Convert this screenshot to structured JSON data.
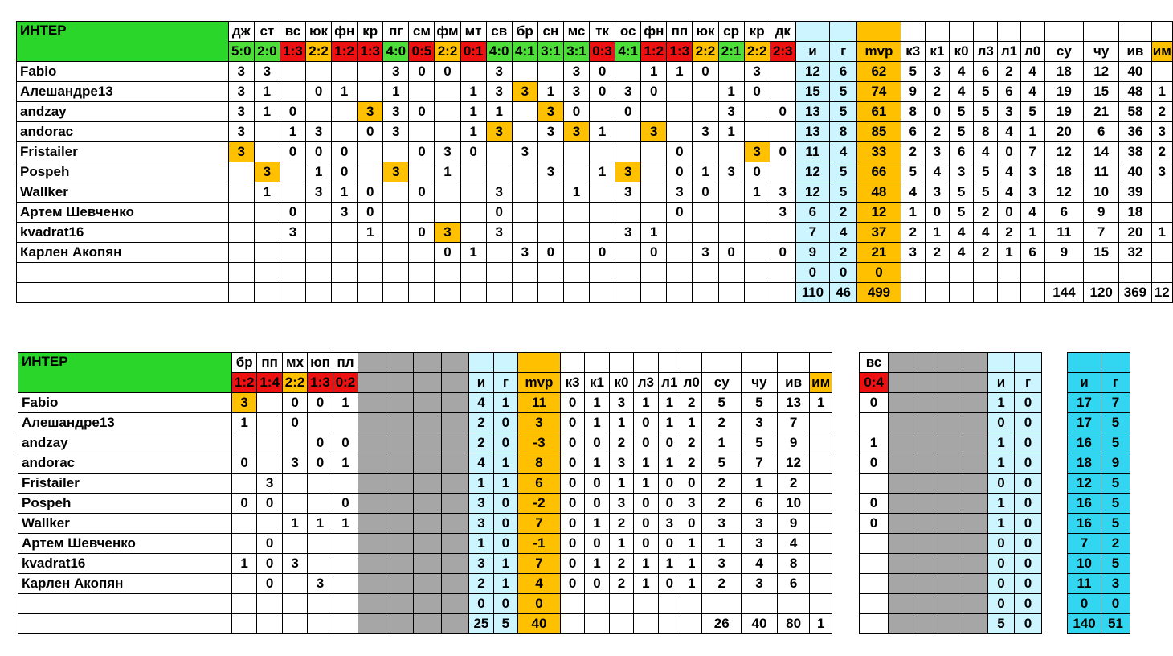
{
  "table1": {
    "title": "ИНТЕР",
    "match_headers": [
      "дж",
      "ст",
      "вс",
      "юк",
      "фн",
      "кр",
      "пг",
      "см",
      "фм",
      "мт",
      "св",
      "бр",
      "сн",
      "мс",
      "тк",
      "ос",
      "фн",
      "пп",
      "юк",
      "ср",
      "кр",
      "дк"
    ],
    "scores": [
      {
        "t": "5:0",
        "c": "g"
      },
      {
        "t": "2:0",
        "c": "g"
      },
      {
        "t": "1:3",
        "c": "r"
      },
      {
        "t": "2:2",
        "c": "y"
      },
      {
        "t": "1:2",
        "c": "r"
      },
      {
        "t": "1:3",
        "c": "r"
      },
      {
        "t": "4:0",
        "c": "g"
      },
      {
        "t": "0:5",
        "c": "r"
      },
      {
        "t": "2:2",
        "c": "y"
      },
      {
        "t": "0:1",
        "c": "r"
      },
      {
        "t": "4:0",
        "c": "g"
      },
      {
        "t": "4:1",
        "c": "g"
      },
      {
        "t": "3:1",
        "c": "g"
      },
      {
        "t": "3:1",
        "c": "g"
      },
      {
        "t": "0:3",
        "c": "r"
      },
      {
        "t": "4:1",
        "c": "g"
      },
      {
        "t": "1:2",
        "c": "r"
      },
      {
        "t": "1:3",
        "c": "r"
      },
      {
        "t": "2:2",
        "c": "y"
      },
      {
        "t": "2:1",
        "c": "g"
      },
      {
        "t": "2:2",
        "c": "y"
      },
      {
        "t": "2:3",
        "c": "r"
      }
    ],
    "stat_headers": [
      "и",
      "г",
      "mvp",
      "к3",
      "к1",
      "к0",
      "л3",
      "л1",
      "л0",
      "су",
      "чу",
      "ив",
      "им"
    ],
    "rows": [
      {
        "name": "Fabio",
        "m": [
          "3",
          "3",
          "",
          "",
          "",
          "",
          "3",
          "0",
          "0",
          "",
          "3",
          "",
          "",
          "3",
          "0",
          "",
          "1",
          "1",
          "0",
          "",
          "3",
          ""
        ],
        "hl": [],
        "s": [
          "12",
          "6",
          "62",
          "5",
          "3",
          "4",
          "6",
          "2",
          "4",
          "18",
          "12",
          "40",
          ""
        ]
      },
      {
        "name": "Алешандре13",
        "m": [
          "3",
          "1",
          "",
          "0",
          "1",
          "",
          "1",
          "",
          "",
          "1",
          "3",
          "3",
          "1",
          "3",
          "0",
          "3",
          "0",
          "",
          "",
          "1",
          "0",
          ""
        ],
        "hl": [
          11
        ],
        "s": [
          "15",
          "5",
          "74",
          "9",
          "2",
          "4",
          "5",
          "6",
          "4",
          "19",
          "15",
          "48",
          "1"
        ]
      },
      {
        "name": "andzay",
        "m": [
          "3",
          "1",
          "0",
          "",
          "",
          "3",
          "3",
          "0",
          "",
          "1",
          "1",
          "",
          "3",
          "0",
          "",
          "0",
          "",
          "",
          "",
          "3",
          "",
          "0"
        ],
        "hl": [
          5,
          12
        ],
        "s": [
          "13",
          "5",
          "61",
          "8",
          "0",
          "5",
          "5",
          "3",
          "5",
          "19",
          "21",
          "58",
          "2"
        ]
      },
      {
        "name": "andorac",
        "m": [
          "3",
          "",
          "1",
          "3",
          "",
          "0",
          "3",
          "",
          "",
          "1",
          "3",
          "",
          "3",
          "3",
          "1",
          "",
          "3",
          "",
          "3",
          "1",
          "",
          ""
        ],
        "hl": [
          10,
          13,
          16
        ],
        "s": [
          "13",
          "8",
          "85",
          "6",
          "2",
          "5",
          "8",
          "4",
          "1",
          "20",
          "6",
          "36",
          "3"
        ]
      },
      {
        "name": "Fristailer",
        "m": [
          "3",
          "",
          "0",
          "0",
          "0",
          "",
          "",
          "0",
          "3",
          "0",
          "",
          "3",
          "",
          "",
          "",
          "",
          "",
          "0",
          "",
          "",
          "3",
          "0"
        ],
        "hl": [
          0,
          20
        ],
        "s": [
          "11",
          "4",
          "33",
          "2",
          "3",
          "6",
          "4",
          "0",
          "7",
          "12",
          "14",
          "38",
          "2"
        ]
      },
      {
        "name": "Pospeh",
        "m": [
          "",
          "3",
          "",
          "1",
          "0",
          "",
          "3",
          "",
          "1",
          "",
          "",
          "",
          "3",
          "",
          "1",
          "3",
          "",
          "0",
          "1",
          "3",
          "0",
          ""
        ],
        "hl": [
          1,
          6,
          15
        ],
        "s": [
          "12",
          "5",
          "66",
          "5",
          "4",
          "3",
          "5",
          "4",
          "3",
          "18",
          "11",
          "40",
          "3"
        ]
      },
      {
        "name": "Wallker",
        "m": [
          "",
          "1",
          "",
          "3",
          "1",
          "0",
          "",
          "0",
          "",
          "",
          "3",
          "",
          "",
          "1",
          "",
          "3",
          "",
          "3",
          "0",
          "",
          "1",
          "3"
        ],
        "hl": [],
        "s": [
          "12",
          "5",
          "48",
          "4",
          "3",
          "5",
          "5",
          "4",
          "3",
          "12",
          "10",
          "39",
          ""
        ]
      },
      {
        "name": "Артем Шевченко",
        "m": [
          "",
          "",
          "0",
          "",
          "3",
          "0",
          "",
          "",
          "",
          "",
          "0",
          "",
          "",
          "",
          "",
          "",
          "",
          "0",
          "",
          "",
          "",
          "3"
        ],
        "hl": [],
        "s": [
          "6",
          "2",
          "12",
          "1",
          "0",
          "5",
          "2",
          "0",
          "4",
          "6",
          "9",
          "18",
          ""
        ]
      },
      {
        "name": "kvadrat16",
        "m": [
          "",
          "",
          "3",
          "",
          "",
          "1",
          "",
          "0",
          "3",
          "",
          "3",
          "",
          "",
          "",
          "",
          "3",
          "1",
          "",
          "",
          "",
          "",
          ""
        ],
        "hl": [
          8
        ],
        "s": [
          "7",
          "4",
          "37",
          "2",
          "1",
          "4",
          "4",
          "2",
          "1",
          "11",
          "7",
          "20",
          "1"
        ]
      },
      {
        "name": "Карлен Акопян",
        "m": [
          "",
          "",
          "",
          "",
          "",
          "",
          "",
          "",
          "0",
          "1",
          "",
          "3",
          "0",
          "",
          "0",
          "",
          "0",
          "",
          "3",
          "0",
          "",
          "0"
        ],
        "hl": [],
        "s": [
          "9",
          "2",
          "21",
          "3",
          "2",
          "4",
          "2",
          "1",
          "6",
          "9",
          "15",
          "32",
          ""
        ]
      },
      {
        "name": "",
        "m": [
          "",
          "",
          "",
          "",
          "",
          "",
          "",
          "",
          "",
          "",
          "",
          "",
          "",
          "",
          "",
          "",
          "",
          "",
          "",
          "",
          "",
          ""
        ],
        "hl": [],
        "s": [
          "0",
          "0",
          "0",
          "",
          "",
          "",
          "",
          "",
          "",
          "",
          "",
          "",
          ""
        ]
      }
    ],
    "totals": [
      "110",
      "46",
      "499",
      "",
      "",
      "",
      "",
      "",
      "",
      "144",
      "120",
      "369",
      "12"
    ]
  },
  "table2": {
    "title": "ИНТЕР",
    "match_headers": [
      "бр",
      "пп",
      "мх",
      "юп",
      "пл"
    ],
    "scores": [
      {
        "t": "1:2",
        "c": "r"
      },
      {
        "t": "1:4",
        "c": "r"
      },
      {
        "t": "2:2",
        "c": "y"
      },
      {
        "t": "1:3",
        "c": "r"
      },
      {
        "t": "0:2",
        "c": "r"
      }
    ],
    "stat_headers": [
      "и",
      "г",
      "mvp",
      "к3",
      "к1",
      "к0",
      "л3",
      "л1",
      "л0",
      "су",
      "чу",
      "ив",
      "им"
    ],
    "rows": [
      {
        "name": "Fabio",
        "m": [
          "3",
          "",
          "0",
          "0",
          "1"
        ],
        "hl": [
          0
        ],
        "s": [
          "4",
          "1",
          "11",
          "0",
          "1",
          "3",
          "1",
          "1",
          "2",
          "5",
          "5",
          "13",
          "1"
        ]
      },
      {
        "name": "Алешандре13",
        "m": [
          "1",
          "",
          "0",
          "",
          ""
        ],
        "hl": [],
        "s": [
          "2",
          "0",
          "3",
          "0",
          "1",
          "1",
          "0",
          "1",
          "1",
          "2",
          "3",
          "7",
          ""
        ]
      },
      {
        "name": "andzay",
        "m": [
          "",
          "",
          "",
          "0",
          "0"
        ],
        "hl": [],
        "s": [
          "2",
          "0",
          "-3",
          "0",
          "0",
          "2",
          "0",
          "0",
          "2",
          "1",
          "5",
          "9",
          ""
        ]
      },
      {
        "name": "andorac",
        "m": [
          "0",
          "",
          "3",
          "0",
          "1"
        ],
        "hl": [],
        "s": [
          "4",
          "1",
          "8",
          "0",
          "1",
          "3",
          "1",
          "1",
          "2",
          "5",
          "7",
          "12",
          ""
        ]
      },
      {
        "name": "Fristailer",
        "m": [
          "",
          "3",
          "",
          "",
          ""
        ],
        "hl": [],
        "s": [
          "1",
          "1",
          "6",
          "0",
          "0",
          "1",
          "1",
          "0",
          "0",
          "2",
          "1",
          "2",
          ""
        ]
      },
      {
        "name": "Pospeh",
        "m": [
          "0",
          "0",
          "",
          "",
          "0"
        ],
        "hl": [],
        "s": [
          "3",
          "0",
          "-2",
          "0",
          "0",
          "3",
          "0",
          "0",
          "3",
          "2",
          "6",
          "10",
          ""
        ]
      },
      {
        "name": "Wallker",
        "m": [
          "",
          "",
          "1",
          "1",
          "1"
        ],
        "hl": [],
        "s": [
          "3",
          "0",
          "7",
          "0",
          "1",
          "2",
          "0",
          "3",
          "0",
          "3",
          "3",
          "9",
          ""
        ]
      },
      {
        "name": "Артем Шевченко",
        "m": [
          "",
          "0",
          "",
          "",
          ""
        ],
        "hl": [],
        "s": [
          "1",
          "0",
          "-1",
          "0",
          "0",
          "1",
          "0",
          "0",
          "1",
          "1",
          "3",
          "4",
          ""
        ]
      },
      {
        "name": "kvadrat16",
        "m": [
          "1",
          "0",
          "3",
          "",
          ""
        ],
        "hl": [],
        "s": [
          "3",
          "1",
          "7",
          "0",
          "1",
          "2",
          "1",
          "1",
          "1",
          "3",
          "4",
          "8",
          ""
        ]
      },
      {
        "name": "Карлен Акопян",
        "m": [
          "",
          "0",
          "",
          "3",
          ""
        ],
        "hl": [],
        "s": [
          "2",
          "1",
          "4",
          "0",
          "0",
          "2",
          "1",
          "0",
          "1",
          "2",
          "3",
          "6",
          ""
        ]
      },
      {
        "name": "",
        "m": [
          "",
          "",
          "",
          "",
          ""
        ],
        "hl": [],
        "s": [
          "0",
          "0",
          "0",
          "",
          "",
          "",
          "",
          "",
          "",
          "",
          "",
          "",
          ""
        ]
      }
    ],
    "totals": [
      "25",
      "5",
      "40",
      "",
      "",
      "",
      "",
      "",
      "",
      "26",
      "40",
      "80",
      "1"
    ]
  },
  "table3": {
    "match_header": "вс",
    "score": "0:4",
    "stat_headers": [
      "и",
      "г"
    ],
    "rows": [
      {
        "m": "0",
        "s": [
          "1",
          "0"
        ]
      },
      {
        "m": "",
        "s": [
          "0",
          "0"
        ]
      },
      {
        "m": "1",
        "s": [
          "1",
          "0"
        ]
      },
      {
        "m": "0",
        "s": [
          "1",
          "0"
        ]
      },
      {
        "m": "",
        "s": [
          "0",
          "0"
        ]
      },
      {
        "m": "0",
        "s": [
          "1",
          "0"
        ]
      },
      {
        "m": "0",
        "s": [
          "1",
          "0"
        ]
      },
      {
        "m": "",
        "s": [
          "0",
          "0"
        ]
      },
      {
        "m": "",
        "s": [
          "0",
          "0"
        ]
      },
      {
        "m": "",
        "s": [
          "0",
          "0"
        ]
      },
      {
        "m": "",
        "s": [
          "0",
          "0"
        ]
      }
    ],
    "totals": [
      "5",
      "0"
    ]
  },
  "table4": {
    "stat_headers": [
      "и",
      "г"
    ],
    "rows": [
      [
        "17",
        "7"
      ],
      [
        "17",
        "5"
      ],
      [
        "16",
        "5"
      ],
      [
        "18",
        "9"
      ],
      [
        "12",
        "5"
      ],
      [
        "16",
        "5"
      ],
      [
        "16",
        "5"
      ],
      [
        "7",
        "2"
      ],
      [
        "10",
        "5"
      ],
      [
        "11",
        "3"
      ],
      [
        "0",
        "0"
      ]
    ],
    "totals": [
      "140",
      "51"
    ]
  }
}
